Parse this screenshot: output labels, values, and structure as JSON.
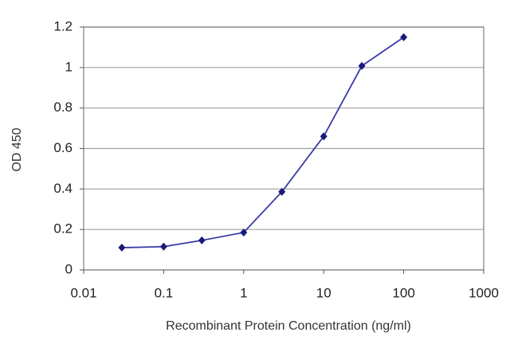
{
  "chart_data": {
    "type": "line",
    "x": [
      0.03,
      0.1,
      0.3,
      1,
      3,
      10,
      30,
      100
    ],
    "values": [
      0.11,
      0.115,
      0.146,
      0.185,
      0.386,
      0.66,
      1.008,
      1.15
    ],
    "color": "#3a3aa8",
    "marker_color": "#1a1a7a",
    "xscale": "log",
    "xlim": [
      0.01,
      1000
    ],
    "xticks": [
      0.01,
      0.1,
      1,
      10,
      100,
      1000
    ],
    "ylim": [
      0,
      1.2
    ],
    "yticks": [
      0,
      0.2,
      0.4,
      0.6,
      0.8,
      1,
      1.2
    ],
    "ygrid": true,
    "xlabel": "Recombinant Protein Concentration (ng/ml)",
    "ylabel": "OD 450"
  }
}
